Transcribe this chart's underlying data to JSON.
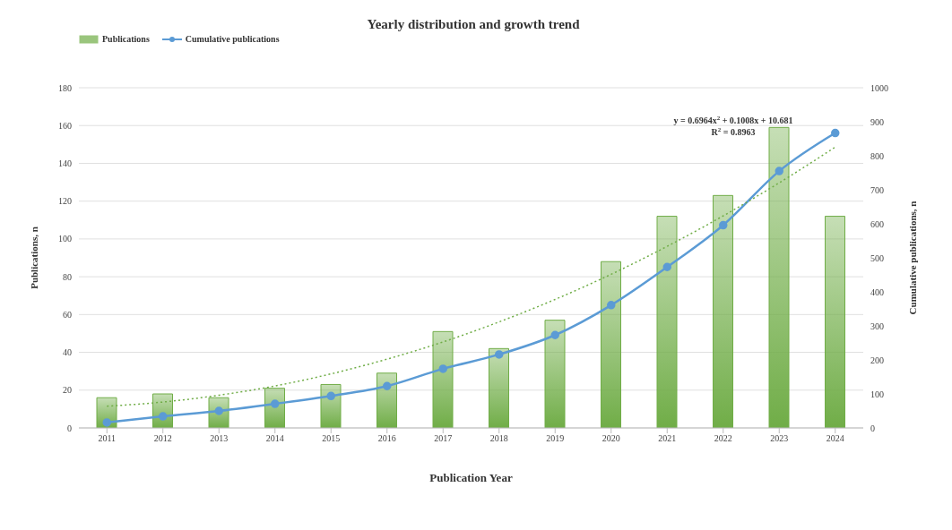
{
  "chart_data": {
    "type": "bar",
    "title": "Yearly distribution and growth trend",
    "xlabel": "Publication Year",
    "ylabel": "Publications, n",
    "y2label": "Cumulative publications, n",
    "categories": [
      "2011",
      "2012",
      "2013",
      "2014",
      "2015",
      "2016",
      "2017",
      "2018",
      "2019",
      "2020",
      "2021",
      "2022",
      "2023",
      "2024"
    ],
    "series": [
      {
        "name": "Publications",
        "color": "#70ad47",
        "values": [
          16,
          18,
          16,
          21,
          23,
          29,
          51,
          42,
          57,
          88,
          112,
          123,
          159,
          112
        ]
      },
      {
        "name": "Cumulative publications",
        "type": "line",
        "axis": "y2",
        "color": "#5b9bd5",
        "marker": "circle",
        "line_style": "solid",
        "values": [
          16,
          34,
          50,
          71,
          94,
          123,
          174,
          216,
          273,
          361,
          473,
          596,
          755,
          867
        ]
      },
      {
        "type": "line",
        "color": "#70ad47",
        "marker": "none",
        "line_style": "dotted",
        "values": [
          11.5,
          13.7,
          17.3,
          22.2,
          28.6,
          36.4,
          45.5,
          56.1,
          68.0,
          81.3,
          96.1,
          112.2,
          129.7,
          148.6
        ]
      }
    ],
    "ylim": [
      0,
      180
    ],
    "yticks": [
      0,
      20,
      40,
      60,
      80,
      100,
      120,
      140,
      160,
      180
    ],
    "y2lim": [
      0,
      1000
    ],
    "y2ticks": [
      0,
      100,
      200,
      300,
      400,
      500,
      600,
      700,
      800,
      900,
      1000
    ],
    "grid": "y",
    "legend": "top left",
    "annotations": [
      "y = 0.6964x$^{2}$ + 0.1008x + 10.681",
      "R$^{2}$ = 0.8963"
    ]
  }
}
